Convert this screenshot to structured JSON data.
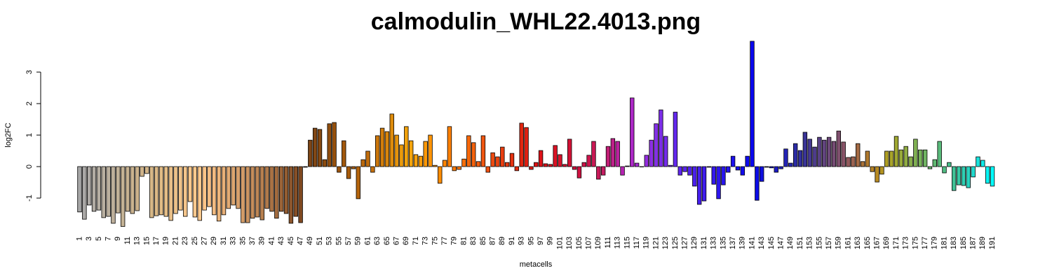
{
  "chart_data": {
    "type": "bar",
    "title": "calmodulin_WHL22.4013.png",
    "x_label": "metacells",
    "y_label": "log2FC",
    "categories": [
      "1",
      null,
      "3",
      null,
      "5",
      null,
      "7",
      null,
      "9",
      null,
      "11",
      null,
      "13",
      null,
      "15",
      null,
      "17",
      null,
      "19",
      null,
      "21",
      null,
      "23",
      null,
      "25",
      null,
      "27",
      null,
      "29",
      null,
      "31",
      null,
      "33",
      null,
      "35",
      null,
      "37",
      null,
      "39",
      null,
      "41",
      null,
      "43",
      null,
      "45",
      null,
      "47",
      null,
      "49",
      null,
      "51",
      null,
      "53",
      null,
      "55",
      null,
      "57",
      null,
      "59",
      null,
      "61",
      null,
      "63",
      null,
      "65",
      null,
      "67",
      null,
      "69",
      null,
      "71",
      null,
      "73",
      null,
      "75",
      null,
      "77",
      null,
      "79",
      null,
      "81",
      null,
      "83",
      null,
      "85",
      null,
      "87",
      null,
      "89",
      null,
      "91",
      null,
      "93",
      null,
      "95",
      null,
      "97",
      null,
      "99",
      null,
      "101",
      null,
      "103",
      null,
      "105",
      null,
      "107",
      null,
      "109",
      null,
      "111",
      null,
      "113",
      null,
      "115",
      null,
      "117",
      null,
      "119",
      null,
      "121",
      null,
      "123",
      null,
      "125",
      null,
      "127",
      null,
      "129",
      null,
      "131",
      null,
      "133",
      null,
      "135",
      null,
      "137",
      null,
      "139",
      null,
      "141",
      null,
      "143",
      null,
      "145",
      null,
      "147",
      null,
      "149",
      null,
      "151",
      null,
      "153",
      null,
      "155",
      null,
      "157",
      null,
      "159",
      null,
      "161",
      null,
      "163",
      null,
      "165",
      null,
      "167",
      null,
      "169",
      null,
      "171",
      null,
      "173",
      null,
      "175",
      null,
      "177",
      null,
      "179",
      null,
      "181",
      null,
      "183",
      null,
      "185",
      null,
      "187",
      null,
      "189",
      null,
      "191"
    ],
    "values": [
      -1.44,
      -1.67,
      -1.22,
      -1.42,
      -1.38,
      -1.62,
      -1.58,
      -1.8,
      -1.47,
      -1.9,
      -1.42,
      -1.49,
      -1.4,
      -0.31,
      -0.22,
      -1.62,
      -1.56,
      -1.53,
      -1.58,
      -1.71,
      -1.49,
      -1.38,
      -1.58,
      -1.11,
      -1.6,
      -1.71,
      -1.38,
      -1.27,
      -1.53,
      -1.73,
      -1.53,
      -1.33,
      -1.22,
      -1.33,
      -1.78,
      -1.78,
      -1.64,
      -1.6,
      -1.69,
      -1.33,
      -1.42,
      -1.64,
      -1.42,
      -1.49,
      -1.8,
      -1.58,
      -1.78,
      -0.02,
      0.84,
      1.22,
      1.18,
      0.22,
      1.36,
      1.4,
      -0.18,
      0.82,
      -0.38,
      -0.07,
      -1.02,
      0.22,
      0.49,
      -0.18,
      0.98,
      1.22,
      1.11,
      1.67,
      1.0,
      0.69,
      1.27,
      0.82,
      0.38,
      0.33,
      0.8,
      1.0,
      0.04,
      -0.53,
      0.2,
      1.27,
      -0.13,
      -0.09,
      0.24,
      0.98,
      0.76,
      0.16,
      0.98,
      -0.18,
      0.44,
      0.31,
      0.62,
      0.13,
      0.42,
      -0.13,
      1.38,
      1.24,
      -0.09,
      0.13,
      0.51,
      0.09,
      0.07,
      0.67,
      0.38,
      0.07,
      0.87,
      -0.09,
      -0.36,
      0.13,
      0.36,
      0.8,
      -0.4,
      -0.27,
      0.64,
      0.89,
      0.8,
      -0.27,
      0.02,
      2.18,
      0.11,
      0,
      0.36,
      0.84,
      1.36,
      1.8,
      0.96,
      0.04,
      1.73,
      -0.27,
      -0.16,
      -0.27,
      -0.62,
      -1.2,
      -1.09,
      -0.02,
      -0.56,
      -1.02,
      -0.58,
      -0.18,
      0.33,
      -0.11,
      -0.27,
      0.33,
      3.98,
      -1.07,
      -0.47,
      -0.02,
      -0.04,
      -0.18,
      -0.07,
      0.56,
      0.11,
      0.73,
      0.51,
      1.09,
      0.87,
      0.62,
      0.93,
      0.84,
      0.93,
      0.8,
      1.13,
      0.78,
      0.29,
      0.31,
      0.73,
      0.16,
      0.49,
      -0.16,
      -0.49,
      -0.24,
      0.49,
      0.49,
      0.96,
      0.53,
      0.64,
      0.31,
      0.87,
      0.53,
      0.53,
      -0.07,
      0.22,
      0.8,
      -0.2,
      0.13,
      -0.76,
      -0.58,
      -0.6,
      -0.67,
      -0.33,
      0.31,
      0.2,
      -0.53,
      -0.62
    ],
    "colors": [
      "#a6a6a6",
      "#aaa8a6",
      "#aeaaa6",
      "#b2aca4",
      "#b5aea2",
      "#b8afa0",
      "#bbb09e",
      "#beb09b",
      "#c1b198",
      "#c4b295",
      "#c7b292",
      "#cab38f",
      "#cdb38c",
      "#d0b48a",
      "#d4b689",
      "#d8b888",
      "#dcb987",
      "#e0bb86",
      "#e4bd87",
      "#e8bf88",
      "#ecc189",
      "#f0c38a",
      "#f4c58b",
      "#f8c78c",
      "#fcc98d",
      "#ffc98c",
      "#fbc488",
      "#f6bf84",
      "#f1ba80",
      "#ecb57c",
      "#e7b078",
      "#e2ab74",
      "#dda670",
      "#d8a16c",
      "#d39c68",
      "#cc9562",
      "#c58e5c",
      "#be8756",
      "#b78050",
      "#b0794a",
      "#a97244",
      "#a26b3e",
      "#9b6438",
      "#945d32",
      "#8d562c",
      "#864f26",
      "#7f4820",
      "#7a4418",
      "#7d4516",
      "#824714",
      "#874a12",
      "#8c4c10",
      "#914e0e",
      "#96500c",
      "#9c540c",
      "#a2580c",
      "#a85c0c",
      "#ae600c",
      "#b4640c",
      "#ba680c",
      "#c06c0c",
      "#c6700c",
      "#cc770c",
      "#d27e0c",
      "#d8850c",
      "#de8c0c",
      "#e4930c",
      "#ea9a0c",
      "#f0a10c",
      "#f4a40c",
      "#f6a00c",
      "#f89c0a",
      "#fa9808",
      "#fc9406",
      "#fe9004",
      "#ff8c02",
      "#ff8600",
      "#ff8000",
      "#fd7a04",
      "#fb7406",
      "#f96e08",
      "#f7680a",
      "#f5620c",
      "#f35c0e",
      "#f15610",
      "#ef5010",
      "#ed4a10",
      "#eb4410",
      "#e93e10",
      "#e73810",
      "#e53210",
      "#e32c10",
      "#e12610",
      "#e02012",
      "#df1a14",
      "#de1416",
      "#dd1218",
      "#dc121c",
      "#db1220",
      "#da1224",
      "#d8122a",
      "#d61230",
      "#d41236",
      "#d2123c",
      "#d01242",
      "#ce1448",
      "#cc164e",
      "#ca1854",
      "#c81a5a",
      "#c61c62",
      "#c21e76",
      "#be208a",
      "#ba229e",
      "#b624b2",
      "#b226be",
      "#ac28c6",
      "#a42ad0",
      "#9c2cd8",
      "#942ede",
      "#8c30e2",
      "#8430e6",
      "#7c2ee8",
      "#742cea",
      "#6c2aec",
      "#6428ee",
      "#5e26ee",
      "#5824ee",
      "#5222ee",
      "#4c20ee",
      "#461eee",
      "#401cee",
      "#3a1aee",
      "#3418ee",
      "#2e16ee",
      "#2814ee",
      "#2212ee",
      "#1c10ee",
      "#160eee",
      "#120cee",
      "#0e0aee",
      "#0a08ee",
      "#0c0ce6",
      "#1010de",
      "#1414d6",
      "#1818ce",
      "#1c1cc6",
      "#2020be",
      "#2424b6",
      "#2828ae",
      "#2c2ca6",
      "#32309e",
      "#3a3498",
      "#443892",
      "#4e3c8c",
      "#584086",
      "#624480",
      "#6c487a",
      "#764c74",
      "#80506e",
      "#8a5468",
      "#945a5c",
      "#9c6250",
      "#a46a44",
      "#aa7238",
      "#b07a2e",
      "#b48226",
      "#b88a22",
      "#b49420",
      "#ae9e24",
      "#a8a42a",
      "#a0a832",
      "#98aa3a",
      "#90ac42",
      "#88ae4a",
      "#80b052",
      "#78b25a",
      "#70b462",
      "#68b66a",
      "#60b872",
      "#58ba7a",
      "#50bc82",
      "#48be8a",
      "#40c296",
      "#38c8a4",
      "#30ceb2",
      "#28d4c0",
      "#20dace",
      "#18e2dc",
      "#10eae8",
      "#08f4f4",
      "#00ffff"
    ],
    "ylim": [
      -2,
      4
    ],
    "yticks": [
      -1,
      0,
      1,
      2,
      3
    ],
    "grid": false
  }
}
